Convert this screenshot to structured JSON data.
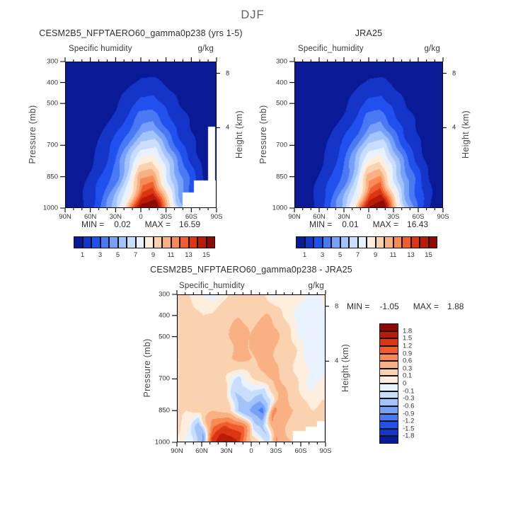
{
  "figure_title": "DJF",
  "palette": [
    "#0a1a96",
    "#1535c8",
    "#2050ee",
    "#4a79f4",
    "#77a1f8",
    "#a3c3fb",
    "#c9defc",
    "#e8f2fe",
    "#fdeede",
    "#fbd2b0",
    "#f9b183",
    "#f78a55",
    "#f15d2e",
    "#dc3513",
    "#b91c06",
    "#8d0b04"
  ],
  "panels": [
    {
      "title": "CESM2B5_NFPTAERO60_gamma0p238 (yrs 1-5)",
      "subtitle_left": "Specific humidity",
      "subtitle_right": "g/kg",
      "ylabel_left": "Pressure (mb)",
      "ylabel_right": "Height (km)",
      "min_label": "MIN =",
      "min_value": "0.02",
      "max_label": "MAX =",
      "max_value": "16.59",
      "yticks": [
        {
          "label": "300",
          "p": 300
        },
        {
          "label": "400",
          "p": 400
        },
        {
          "label": "500",
          "p": 500
        },
        {
          "label": "700",
          "p": 700
        },
        {
          "label": "850",
          "p": 850
        },
        {
          "label": "1000",
          "p": 1000
        }
      ],
      "xticks": [
        {
          "label": "90N",
          "deg": 90
        },
        {
          "label": "60N",
          "deg": 60
        },
        {
          "label": "30N",
          "deg": 30
        },
        {
          "label": "0",
          "deg": 0
        },
        {
          "label": "30S",
          "deg": -30
        },
        {
          "label": "60S",
          "deg": -60
        },
        {
          "label": "90S",
          "deg": -90
        }
      ],
      "hticks": [
        {
          "label": "8",
          "p": 356
        },
        {
          "label": "4",
          "p": 616
        }
      ],
      "colorbar_tick_labels": [
        "1",
        "3",
        "5",
        "7",
        "9",
        "11",
        "13",
        "15"
      ]
    },
    {
      "title": "JRA25",
      "subtitle_left": "Specific_humidity",
      "subtitle_right": "g/kg",
      "ylabel_left": "Pressure (mb)",
      "ylabel_right": "Height (km)",
      "min_label": "MIN =",
      "min_value": "0.01",
      "max_label": "MAX =",
      "max_value": "16.43",
      "yticks": [
        {
          "label": "300",
          "p": 300
        },
        {
          "label": "400",
          "p": 400
        },
        {
          "label": "500",
          "p": 500
        },
        {
          "label": "700",
          "p": 700
        },
        {
          "label": "850",
          "p": 850
        },
        {
          "label": "1000",
          "p": 1000
        }
      ],
      "xticks": [
        {
          "label": "90N",
          "deg": 90
        },
        {
          "label": "60N",
          "deg": 60
        },
        {
          "label": "30N",
          "deg": 30
        },
        {
          "label": "0",
          "deg": 0
        },
        {
          "label": "30S",
          "deg": -30
        },
        {
          "label": "60S",
          "deg": -60
        },
        {
          "label": "90S",
          "deg": -90
        }
      ],
      "hticks": [
        {
          "label": "8",
          "p": 356
        },
        {
          "label": "4",
          "p": 616
        }
      ],
      "colorbar_tick_labels": [
        "1",
        "3",
        "5",
        "7",
        "9",
        "11",
        "13",
        "15"
      ]
    },
    {
      "title": "CESM2B5_NFPTAERO60_gamma0p238 - JRA25",
      "subtitle_left": "Specific_humidity",
      "subtitle_right": "g/kg",
      "ylabel_left": "Pressure (mb)",
      "ylabel_right": "Height (km)",
      "min_label": "MIN =",
      "min_value": "-1.05",
      "max_label": "MAX =",
      "max_value": "1.88",
      "yticks": [
        {
          "label": "300",
          "p": 300
        },
        {
          "label": "400",
          "p": 400
        },
        {
          "label": "500",
          "p": 500
        },
        {
          "label": "700",
          "p": 700
        },
        {
          "label": "850",
          "p": 850
        },
        {
          "label": "1000",
          "p": 1000
        }
      ],
      "xticks": [
        {
          "label": "90N",
          "deg": 90
        },
        {
          "label": "60N",
          "deg": 60
        },
        {
          "label": "30N",
          "deg": 30
        },
        {
          "label": "0",
          "deg": 0
        },
        {
          "label": "30S",
          "deg": -30
        },
        {
          "label": "60S",
          "deg": -60
        },
        {
          "label": "90S",
          "deg": -90
        }
      ],
      "hticks": [
        {
          "label": "8",
          "p": 356
        },
        {
          "label": "4",
          "p": 616
        }
      ],
      "colorbar_tick_labels": [
        "1.8",
        "1.5",
        "1.2",
        "0.9",
        "0.6",
        "0.3",
        "0.1",
        "0",
        "-0.1",
        "-0.3",
        "-0.6",
        "-0.9",
        "-1.2",
        "-1.5",
        "-1.8"
      ]
    }
  ],
  "chart_data": [
    {
      "type": "heatmap",
      "title": "CESM2B5_NFPTAERO60_gamma0p238 (yrs 1-5)",
      "variable": "Specific humidity",
      "units": "g/kg",
      "season": "DJF",
      "min": 0.02,
      "max": 16.59,
      "lats": [
        90,
        75,
        60,
        45,
        30,
        15,
        0,
        -15,
        -30,
        -45,
        -60,
        -75,
        -90
      ],
      "plevs": [
        300,
        400,
        500,
        600,
        700,
        800,
        850,
        925,
        1000
      ],
      "levels": [
        1,
        2,
        3,
        4,
        5,
        6,
        7,
        8,
        9,
        10,
        11,
        12,
        13,
        14,
        15
      ],
      "values": [
        [
          0.01,
          0.02,
          0.04,
          0.07,
          0.12,
          0.22,
          0.34,
          0.36,
          0.24,
          0.14,
          0.07,
          0.03,
          0.01
        ],
        [
          0.03,
          0.06,
          0.12,
          0.24,
          0.41,
          0.74,
          1.17,
          1.24,
          0.83,
          0.47,
          0.26,
          0.1,
          0.04
        ],
        [
          0.06,
          0.12,
          0.24,
          0.48,
          0.83,
          1.47,
          2.34,
          2.48,
          1.65,
          0.93,
          0.51,
          0.2,
          0.08
        ],
        [
          0.1,
          0.21,
          0.42,
          0.83,
          1.43,
          2.55,
          4.06,
          4.29,
          2.86,
          1.61,
          0.88,
          0.34,
          0.13
        ],
        [
          0.16,
          0.33,
          0.66,
          1.31,
          2.26,
          4.02,
          6.4,
          6.77,
          4.51,
          2.54,
          1.39,
          0.53,
          0.21
        ],
        [
          0.23,
          0.47,
          0.94,
          1.87,
          3.22,
          5.73,
          9.13,
          9.65,
          6.44,
          3.63,
          1.99,
          0.76,
          0.29
        ],
        [
          0.27,
          0.54,
          1.09,
          2.18,
          3.74,
          6.66,
          10.61,
          11.22,
          7.48,
          4.22,
          2.31,
          0.88,
          0.34
        ],
        [
          0.33,
          0.67,
          1.34,
          2.67,
          4.59,
          8.18,
          13.03,
          13.78,
          9.19,
          5.18,
          2.84,
          1.09,
          0.42
        ],
        [
          0.4,
          0.8,
          1.6,
          3.2,
          5.5,
          9.8,
          15.6,
          16.5,
          11.0,
          6.2,
          3.4,
          1.3,
          0.5
        ]
      ],
      "mask_steps": [
        {
          "lat_max": -50,
          "p_min": 926
        },
        {
          "lat_max": -63,
          "p_min": 868
        },
        {
          "lat_max": -80,
          "lat_min": -88,
          "p_min": 612
        },
        {
          "lat_max": -88,
          "p_min": 900
        }
      ]
    },
    {
      "type": "heatmap",
      "title": "JRA25",
      "variable": "Specific_humidity",
      "units": "g/kg",
      "season": "DJF",
      "min": 0.01,
      "max": 16.43,
      "lats": [
        90,
        75,
        60,
        45,
        30,
        15,
        0,
        -15,
        -30,
        -45,
        -60,
        -75,
        -90
      ],
      "plevs": [
        300,
        400,
        500,
        600,
        700,
        800,
        850,
        925,
        1000
      ],
      "levels": [
        1,
        2,
        3,
        4,
        5,
        6,
        7,
        8,
        9,
        10,
        11,
        12,
        13,
        14,
        15
      ],
      "values": [
        [
          0.01,
          0.02,
          0.03,
          0.07,
          0.11,
          0.2,
          0.33,
          0.36,
          0.23,
          0.13,
          0.07,
          0.02,
          0.01
        ],
        [
          0.03,
          0.05,
          0.11,
          0.23,
          0.39,
          0.69,
          1.14,
          1.23,
          0.8,
          0.44,
          0.23,
          0.08,
          0.03
        ],
        [
          0.05,
          0.11,
          0.23,
          0.45,
          0.78,
          1.38,
          2.28,
          2.46,
          1.59,
          0.89,
          0.47,
          0.17,
          0.06
        ],
        [
          0.09,
          0.18,
          0.39,
          0.78,
          1.35,
          2.39,
          3.95,
          4.26,
          2.76,
          1.53,
          0.81,
          0.29,
          0.1
        ],
        [
          0.14,
          0.29,
          0.62,
          1.23,
          2.13,
          3.77,
          6.23,
          6.72,
          4.35,
          2.42,
          1.27,
          0.45,
          0.16
        ],
        [
          0.2,
          0.41,
          0.88,
          1.76,
          3.04,
          5.38,
          8.89,
          9.59,
          6.2,
          3.45,
          1.81,
          0.64,
          0.23
        ],
        [
          0.24,
          0.48,
          1.02,
          2.04,
          3.54,
          6.26,
          10.34,
          11.15,
          7.21,
          4.01,
          2.11,
          0.75,
          0.27
        ],
        [
          0.29,
          0.58,
          1.25,
          2.51,
          4.34,
          7.68,
          12.69,
          13.69,
          8.85,
          4.93,
          2.59,
          0.92,
          0.33
        ],
        [
          0.35,
          0.7,
          1.5,
          3.0,
          5.2,
          9.2,
          15.2,
          16.4,
          10.6,
          5.9,
          3.1,
          1.1,
          0.4
        ]
      ],
      "mask_steps": []
    },
    {
      "type": "heatmap",
      "title": "CESM2B5_NFPTAERO60_gamma0p238 - JRA25",
      "variable": "Specific_humidity",
      "units": "g/kg",
      "season": "DJF",
      "min": -1.05,
      "max": 1.88,
      "lats": [
        90,
        75,
        60,
        45,
        30,
        15,
        0,
        -15,
        -30,
        -45,
        -60,
        -75,
        -90
      ],
      "plevs": [
        300,
        400,
        500,
        600,
        700,
        800,
        850,
        925,
        1000
      ],
      "levels": [
        -1.8,
        -1.5,
        -1.2,
        -0.9,
        -0.6,
        -0.3,
        -0.1,
        0,
        0.1,
        0.3,
        0.6,
        0.9,
        1.2,
        1.5,
        1.8
      ],
      "values": [
        [
          0.15,
          0.1,
          0.03,
          -0.06,
          0.1,
          0.18,
          0.15,
          0.15,
          -0.05,
          0.08,
          0.04,
          -0.06,
          0.12
        ],
        [
          0.15,
          0.14,
          0.1,
          0.12,
          0.18,
          0.28,
          0.25,
          0.32,
          0.22,
          0.06,
          -0.04,
          -0.08,
          -0.03
        ],
        [
          0.12,
          0.14,
          0.15,
          0.13,
          0.22,
          0.5,
          0.3,
          0.52,
          0.3,
          0.12,
          -0.04,
          -0.1,
          -0.04
        ],
        [
          0.1,
          0.12,
          0.16,
          0.18,
          0.25,
          0.42,
          0.28,
          0.45,
          0.32,
          0.18,
          0.02,
          -0.08,
          -0.02
        ],
        [
          0.1,
          0.12,
          0.16,
          0.22,
          0.12,
          -0.18,
          0.08,
          0.28,
          0.35,
          0.22,
          0.08,
          -0.04,
          0.02
        ],
        [
          0.1,
          0.1,
          0.16,
          0.28,
          0.18,
          -0.38,
          -0.22,
          -0.55,
          0.4,
          0.28,
          0.12,
          0.02,
          0.1
        ],
        [
          0.14,
          0.1,
          0.2,
          0.3,
          0.1,
          -0.42,
          -0.6,
          -1.05,
          0.72,
          0.32,
          0.16,
          0.1,
          0.14
        ],
        [
          0.1,
          0.0,
          -0.5,
          0.85,
          1.25,
          0.95,
          -0.2,
          -0.35,
          0.55,
          0.28,
          0.12,
          0.1,
          0.12
        ],
        [
          0.1,
          -0.1,
          -0.75,
          1.35,
          1.86,
          1.55,
          0.35,
          -0.28,
          0.65,
          0.35,
          0.18,
          0.12,
          0.12
        ]
      ],
      "mask_steps": [
        {
          "lat_max": -51,
          "p_min": 946
        },
        {
          "lat_max": -66,
          "p_min": 925
        },
        {
          "lat_max": -80,
          "p_min": 898
        }
      ]
    }
  ]
}
